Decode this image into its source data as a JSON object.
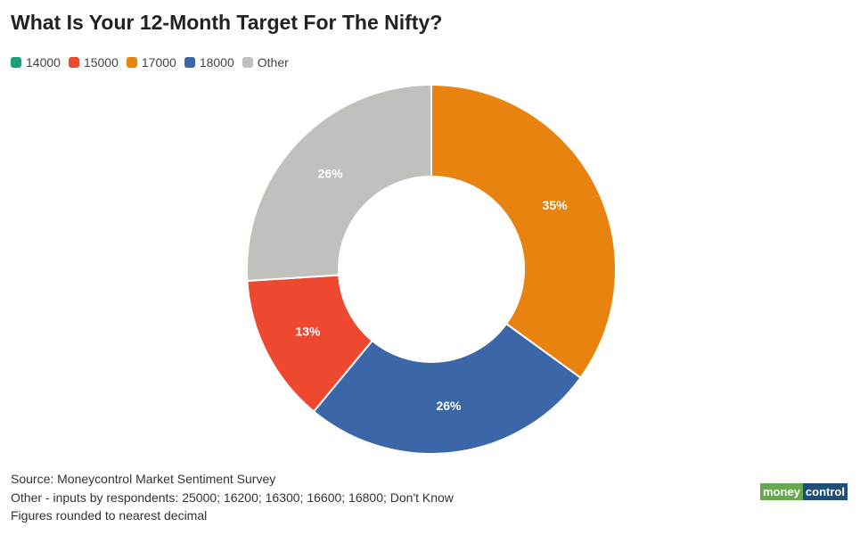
{
  "chart_data": {
    "type": "pie",
    "style": "donut",
    "title": "What Is Your 12-Month Target For The Nifty?",
    "legend": {
      "placement": "top-left",
      "entries": [
        {
          "label": "14000",
          "color": "#1aa37a"
        },
        {
          "label": "15000",
          "color": "#ee4830"
        },
        {
          "label": "17000",
          "color": "#e8830f"
        },
        {
          "label": "18000",
          "color": "#3b66a8"
        },
        {
          "label": "Other",
          "color": "#c0c1bd"
        }
      ]
    },
    "slices": [
      {
        "category": "14000",
        "value": 0,
        "label": "",
        "color": "#1aa37a"
      },
      {
        "category": "17000",
        "value": 35,
        "label": "35%",
        "color": "#e8830f"
      },
      {
        "category": "18000",
        "value": 26,
        "label": "26%",
        "color": "#3b66a8"
      },
      {
        "category": "15000",
        "value": 13,
        "label": "13%",
        "color": "#ee4830"
      },
      {
        "category": "Other",
        "value": 26,
        "label": "26%",
        "color": "#c0c1bd"
      }
    ]
  },
  "notes": {
    "source": "Source: Moneycontrol Market Sentiment Survey",
    "other": "Other - inputs by respondents: 25000; 16200; 16300; 16600; 16800; Don't Know",
    "rounding": "Figures rounded to nearest decimal"
  },
  "logo": {
    "part1": "money",
    "part2": "control"
  }
}
